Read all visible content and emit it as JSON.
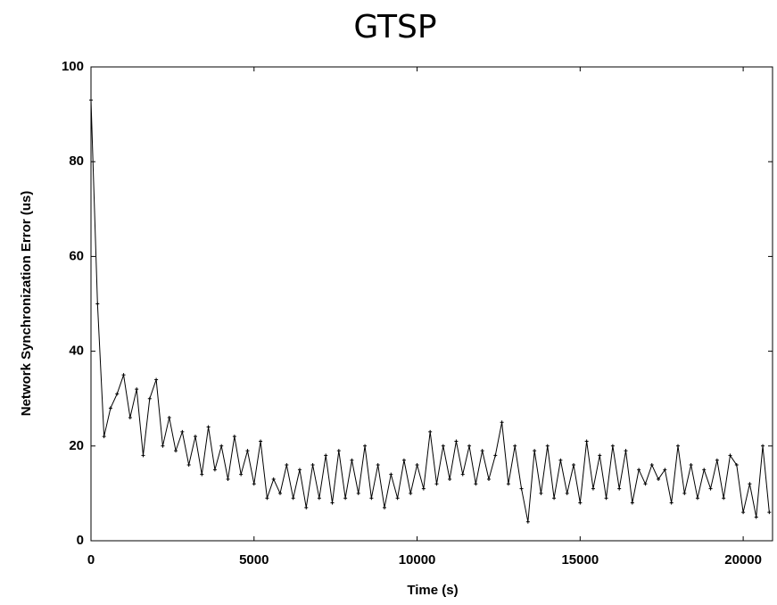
{
  "chart_data": {
    "type": "line",
    "title": "GTSP",
    "x_label": "Time (s)",
    "y_label": "Network Synchronization Error (us)",
    "x": [
      0,
      200,
      400,
      600,
      800,
      1000,
      1200,
      1400,
      1600,
      1800,
      2000,
      2200,
      2400,
      2600,
      2800,
      3000,
      3200,
      3400,
      3600,
      3800,
      4000,
      4200,
      4400,
      4600,
      4800,
      5000,
      5200,
      5400,
      5600,
      5800,
      6000,
      6200,
      6400,
      6600,
      6800,
      7000,
      7200,
      7400,
      7600,
      7800,
      8000,
      8200,
      8400,
      8600,
      8800,
      9000,
      9200,
      9400,
      9600,
      9800,
      10000,
      10200,
      10400,
      10600,
      10800,
      11000,
      11200,
      11400,
      11600,
      11800,
      12000,
      12200,
      12400,
      12600,
      12800,
      13000,
      13200,
      13400,
      13600,
      13800,
      14000,
      14200,
      14400,
      14600,
      14800,
      15000,
      15200,
      15400,
      15600,
      15800,
      16000,
      16200,
      16400,
      16600,
      16800,
      17000,
      17200,
      17400,
      17600,
      17800,
      18000,
      18200,
      18400,
      18600,
      18800,
      19000,
      19200,
      19400,
      19600,
      19800,
      20000,
      20200,
      20400,
      20600,
      20800
    ],
    "series": [
      {
        "color": "#000000",
        "values": [
          93,
          50,
          22,
          28,
          31,
          35,
          26,
          32,
          18,
          30,
          34,
          20,
          26,
          19,
          23,
          16,
          22,
          14,
          24,
          15,
          20,
          13,
          22,
          14,
          19,
          12,
          21,
          9,
          13,
          10,
          16,
          9,
          15,
          7,
          16,
          9,
          18,
          8,
          19,
          9,
          17,
          10,
          20,
          9,
          16,
          7,
          14,
          9,
          17,
          10,
          16,
          11,
          23,
          12,
          20,
          13,
          21,
          14,
          20,
          12,
          19,
          13,
          18,
          25,
          12,
          20,
          11,
          4,
          19,
          10,
          20,
          9,
          17,
          10,
          16,
          8,
          21,
          11,
          18,
          9,
          20,
          11,
          19,
          8,
          15,
          12,
          16,
          13,
          15,
          8,
          20,
          10,
          16,
          9,
          15,
          11,
          17,
          9,
          18,
          16,
          6,
          12,
          5,
          20,
          6
        ]
      }
    ],
    "xlim": [
      0,
      20900
    ],
    "ylim": [
      0,
      100
    ],
    "xticks": [
      0,
      5000,
      10000,
      15000,
      20000
    ],
    "yticks": [
      0,
      20,
      40,
      60,
      80,
      100
    ]
  }
}
